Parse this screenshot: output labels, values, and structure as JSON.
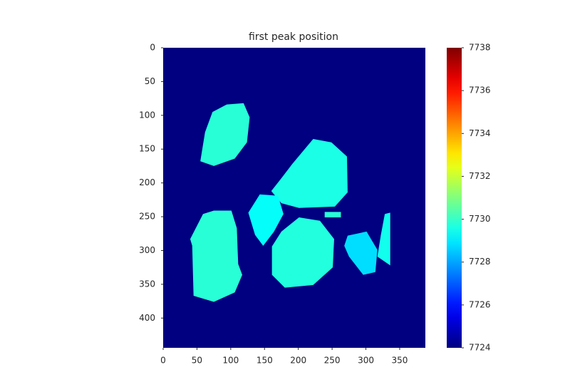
{
  "chart_data": {
    "type": "heatmap",
    "title": "first peak position",
    "colormap": "jet",
    "xlim": [
      0,
      388
    ],
    "ylim": [
      0,
      444
    ],
    "xticks": [
      0,
      50,
      100,
      150,
      200,
      250,
      300,
      350
    ],
    "yticks": [
      0,
      50,
      100,
      150,
      200,
      250,
      300,
      350,
      400
    ],
    "clim": [
      7724,
      7738
    ],
    "cticks": [
      7724,
      7726,
      7728,
      7730,
      7732,
      7734,
      7736,
      7738
    ],
    "background_value": 7724,
    "regions": [
      {
        "value": 7729.8,
        "points": [
          [
            73,
            95
          ],
          [
            94,
            84
          ],
          [
            119,
            82
          ],
          [
            128,
            103
          ],
          [
            124,
            140
          ],
          [
            106,
            164
          ],
          [
            75,
            175
          ],
          [
            55,
            168
          ],
          [
            62,
            125
          ]
        ]
      },
      {
        "value": 7729.6,
        "points": [
          [
            222,
            135
          ],
          [
            249,
            140
          ],
          [
            272,
            161
          ],
          [
            273,
            214
          ],
          [
            254,
            235
          ],
          [
            201,
            237
          ],
          [
            175,
            230
          ],
          [
            160,
            212
          ],
          [
            175,
            193
          ],
          [
            191,
            172
          ]
        ]
      },
      {
        "value": 7729.3,
        "points": [
          [
            143,
            217
          ],
          [
            170,
            219
          ],
          [
            178,
            246
          ],
          [
            164,
            272
          ],
          [
            148,
            293
          ],
          [
            136,
            277
          ],
          [
            126,
            244
          ]
        ]
      },
      {
        "value": 7729.7,
        "points": [
          [
            201,
            251
          ],
          [
            232,
            256
          ],
          [
            253,
            283
          ],
          [
            251,
            325
          ],
          [
            222,
            351
          ],
          [
            180,
            355
          ],
          [
            161,
            336
          ],
          [
            161,
            294
          ],
          [
            175,
            272
          ]
        ]
      },
      {
        "value": 7729.8,
        "points": [
          [
            75,
            241
          ],
          [
            101,
            241
          ],
          [
            109,
            267
          ],
          [
            111,
            320
          ],
          [
            117,
            336
          ],
          [
            106,
            362
          ],
          [
            75,
            376
          ],
          [
            45,
            367
          ],
          [
            43,
            293
          ],
          [
            40,
            283
          ],
          [
            59,
            246
          ]
        ]
      },
      {
        "value": 7728.8,
        "points": [
          [
            273,
            278
          ],
          [
            301,
            272
          ],
          [
            317,
            299
          ],
          [
            314,
            332
          ],
          [
            296,
            336
          ],
          [
            275,
            309
          ],
          [
            268,
            293
          ]
        ]
      },
      {
        "value": 7729.5,
        "points": [
          [
            328,
            246
          ],
          [
            336,
            244
          ],
          [
            336,
            322
          ],
          [
            317,
            309
          ],
          [
            322,
            278
          ]
        ]
      },
      {
        "value": 7729.8,
        "points": [
          [
            239,
            243
          ],
          [
            263,
            243
          ],
          [
            263,
            251
          ],
          [
            239,
            251
          ]
        ]
      }
    ]
  }
}
